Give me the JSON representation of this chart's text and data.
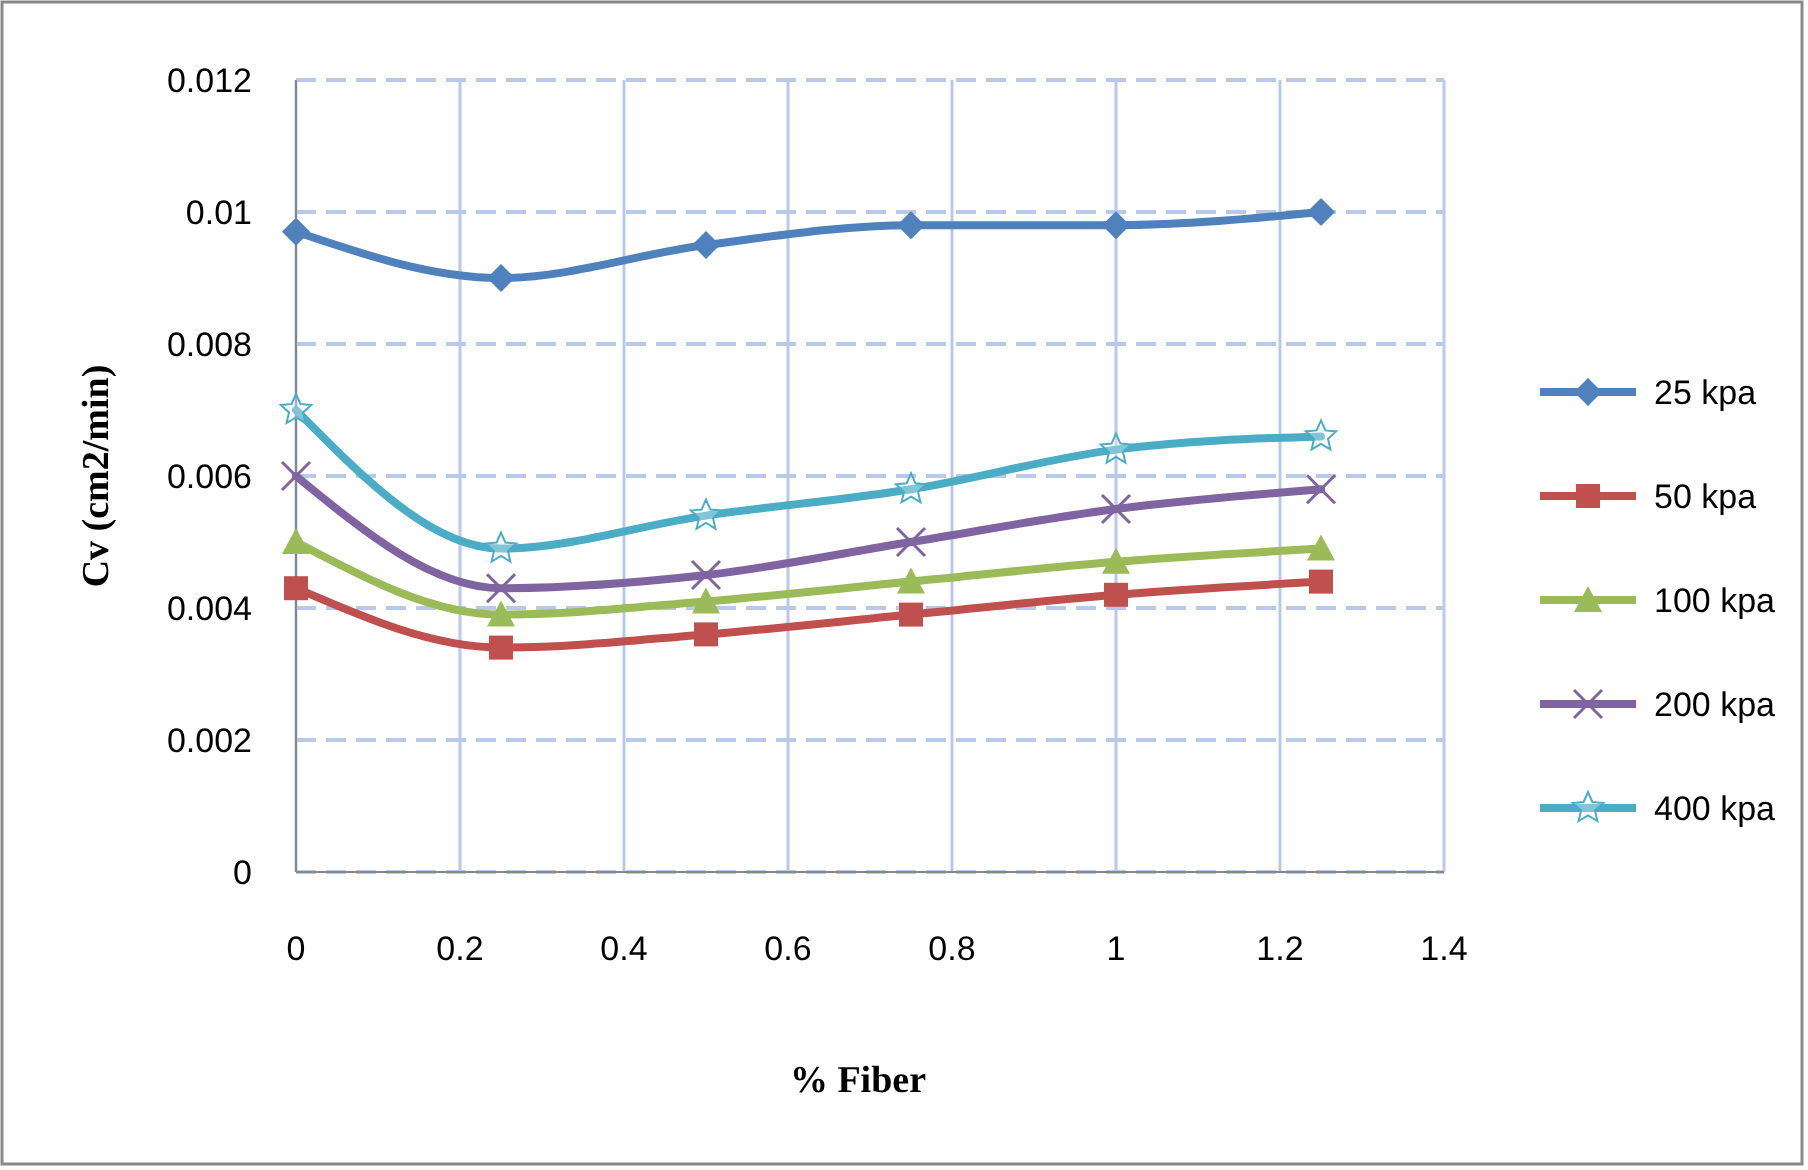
{
  "chart_data": {
    "type": "line",
    "xlabel": "% Fiber",
    "ylabel": "Cv (cm2/min)",
    "x": [
      0,
      0.25,
      0.5,
      0.75,
      1,
      1.25
    ],
    "xlim": [
      0,
      1.4
    ],
    "xticks": [
      0,
      0.2,
      0.4,
      0.6,
      0.8,
      1,
      1.2,
      1.4
    ],
    "ylim": [
      0,
      0.012
    ],
    "yticks": [
      0,
      0.002,
      0.004,
      0.006,
      0.008,
      0.01,
      0.012
    ],
    "grid": true,
    "legend": "right",
    "series": [
      {
        "name": "25 kpa",
        "color": "#4f81bd",
        "marker": "diamond",
        "values": [
          0.0097,
          0.009,
          0.0095,
          0.0098,
          0.0098,
          0.01
        ]
      },
      {
        "name": "50 kpa",
        "color": "#c0504d",
        "marker": "square",
        "values": [
          0.0043,
          0.0034,
          0.0036,
          0.0039,
          0.0042,
          0.0044
        ]
      },
      {
        "name": "100 kpa",
        "color": "#9bbb59",
        "marker": "triangle",
        "values": [
          0.005,
          0.0039,
          0.0041,
          0.0044,
          0.0047,
          0.0049
        ]
      },
      {
        "name": "200 kpa",
        "color": "#8064a2",
        "marker": "cross",
        "values": [
          0.006,
          0.0043,
          0.0045,
          0.005,
          0.0055,
          0.0058
        ]
      },
      {
        "name": "400 kpa",
        "color": "#4bacc6",
        "marker": "star",
        "values": [
          0.007,
          0.0049,
          0.0054,
          0.0058,
          0.0064,
          0.0066
        ]
      }
    ]
  }
}
